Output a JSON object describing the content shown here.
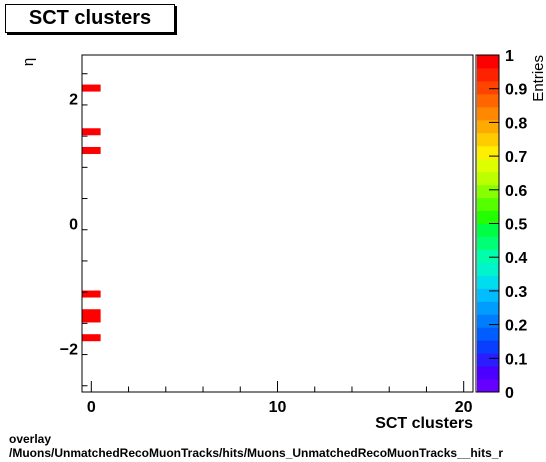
{
  "chart_data": {
    "type": "heatmap",
    "title": "SCT clusters",
    "xlabel": "SCT clusters",
    "ylabel": "η",
    "zlabel": "Entries",
    "xlim": [
      -0.5,
      20.5
    ],
    "ylim": [
      -2.7,
      2.7
    ],
    "zlim": [
      0,
      1
    ],
    "x_ticks": [
      0,
      10,
      20
    ],
    "y_ticks": [
      -2,
      0,
      2
    ],
    "z_ticks": [
      "0",
      "0.1",
      "0.2",
      "0.3",
      "0.4",
      "0.5",
      "0.6",
      "0.7",
      "0.8",
      "0.9",
      "1"
    ],
    "cells": [
      {
        "x": 0,
        "y": 2.17,
        "value": 1
      },
      {
        "x": 0,
        "y": 1.47,
        "value": 1
      },
      {
        "x": 0,
        "y": 1.17,
        "value": 1
      },
      {
        "x": 0,
        "y": -1.13,
        "value": 1
      },
      {
        "x": 0,
        "y": -1.43,
        "value": 1
      },
      {
        "x": 0,
        "y": -1.53,
        "value": 1
      },
      {
        "x": 0,
        "y": -1.83,
        "value": 1
      }
    ]
  },
  "footer": {
    "line1": "overlay",
    "line2": "/Muons/UnmatchedRecoMuonTracks/hits/Muons_UnmatchedRecoMuonTracks__hits_r"
  }
}
